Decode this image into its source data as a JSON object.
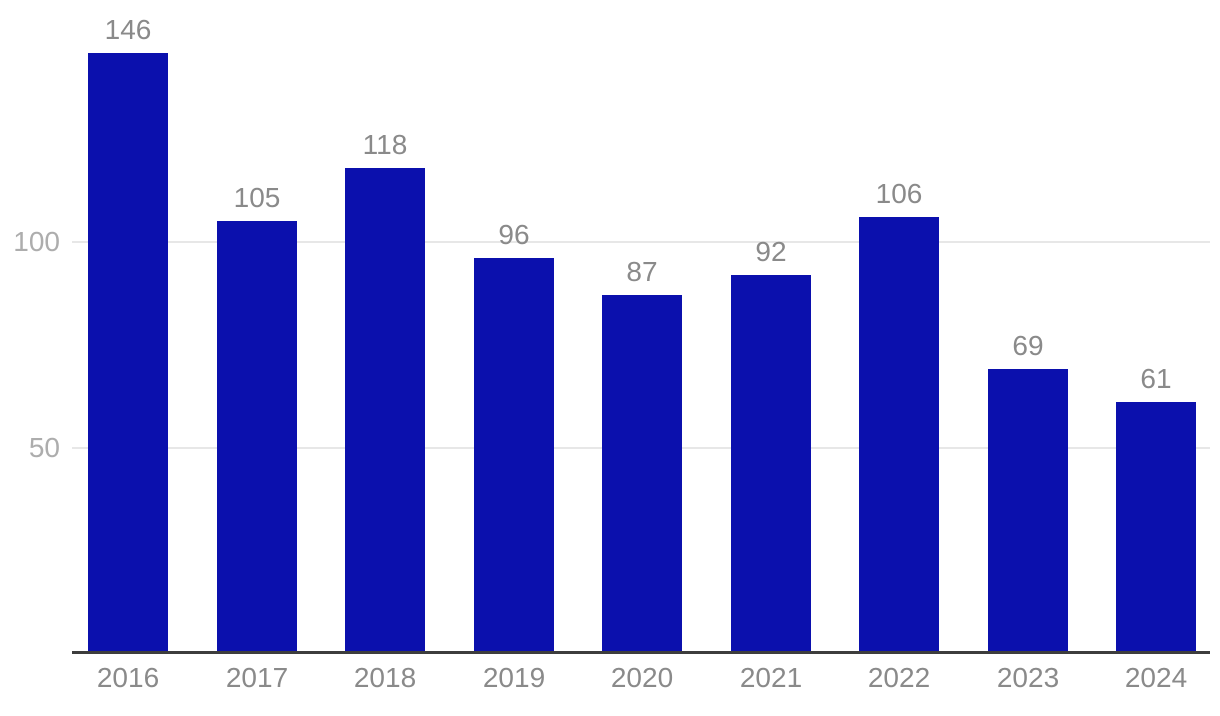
{
  "chart_data": {
    "type": "bar",
    "categories": [
      "2016",
      "2017",
      "2018",
      "2019",
      "2020",
      "2021",
      "2022",
      "2023",
      "2024"
    ],
    "values": [
      146,
      105,
      118,
      96,
      87,
      92,
      106,
      69,
      61
    ],
    "data_labels": [
      "146",
      "105",
      "118",
      "96",
      "87",
      "92",
      "106",
      "69",
      "61"
    ],
    "title": "",
    "xlabel": "",
    "ylabel": "",
    "yticks": [
      50,
      100
    ],
    "ytick_labels": [
      "50",
      "100"
    ],
    "ylim": [
      0,
      150
    ],
    "grid": "horizontal-only",
    "legend": "none",
    "colors": {
      "bar": "#0B10AD",
      "value_label": "#8a8a8a",
      "x_tick_label": "#8a8a8a",
      "y_tick_label": "#adadad",
      "gridline": "#e7e7e7",
      "axis_line": "#3d3d3d",
      "background": "#ffffff"
    }
  }
}
